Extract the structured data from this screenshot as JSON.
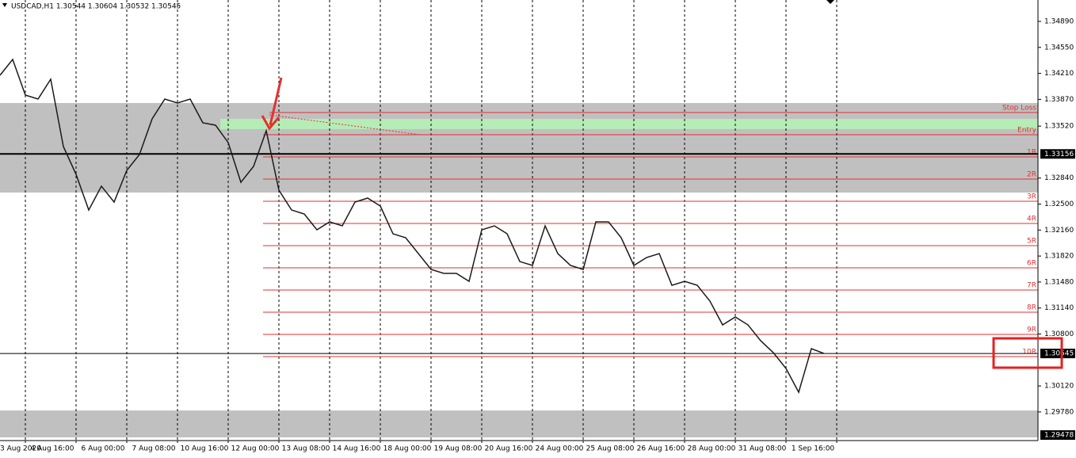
{
  "chart_data": {
    "type": "line",
    "title": "USDCAD,H1  1.30544 1.30604 1.30532 1.30545",
    "categories": [
      "3 Aug 2020",
      null,
      null,
      null,
      "4 Aug 16:00",
      null,
      null,
      null,
      "6 Aug 00:00",
      null,
      null,
      null,
      "7 Aug 08:00",
      null,
      null,
      null,
      "10 Aug 16:00",
      null,
      null,
      null,
      "12 Aug 00:00",
      null,
      null,
      null,
      "13 Aug 08:00",
      null,
      null,
      null,
      "14 Aug 16:00",
      null,
      null,
      null,
      "18 Aug 00:00",
      null,
      null,
      null,
      "19 Aug 08:00",
      null,
      null,
      null,
      "20 Aug 16:00",
      null,
      null,
      null,
      "24 Aug 00:00",
      null,
      null,
      null,
      "25 Aug 08:00",
      null,
      null,
      null,
      "26 Aug 16:00",
      null,
      null,
      null,
      "28 Aug 00:00",
      null,
      null,
      null,
      "31 Aug 08:00",
      null,
      null,
      null,
      "1 Sep 16:00",
      null
    ],
    "series": [
      {
        "name": "USDCAD",
        "color": "#1a1a1a",
        "values": [
          1.34185,
          1.34392,
          1.33926,
          1.33874,
          1.34133,
          1.33252,
          1.32889,
          1.32422,
          1.32734,
          1.32526,
          1.32941,
          1.33148,
          1.33615,
          1.33874,
          1.33822,
          1.33874,
          1.33563,
          1.33532,
          1.33304,
          1.32785,
          1.32993,
          1.33459,
          1.32682,
          1.32422,
          1.3237,
          1.32163,
          1.32267,
          1.32215,
          1.32526,
          1.32578,
          1.32474,
          1.32111,
          1.32059,
          1.31852,
          1.31645,
          1.31593,
          1.31593,
          1.31489,
          1.32163,
          1.32215,
          1.32111,
          1.31748,
          1.31697,
          1.32215,
          1.31852,
          1.31697,
          1.31645,
          1.32267,
          1.32267,
          1.32059,
          1.31697,
          1.318,
          1.31852,
          1.31437,
          1.31489,
          1.31437,
          1.3123,
          1.30919,
          1.31023,
          1.30919,
          1.30712,
          1.30556,
          1.30349,
          1.30038,
          1.30608,
          1.30545
        ]
      }
    ],
    "ylim": [
      1.29364,
      1.3517
    ],
    "yticks": [
      {
        "value": 1.3489,
        "label": "1.34890"
      },
      {
        "value": 1.3455,
        "label": "1.34550"
      },
      {
        "value": 1.3421,
        "label": "1.34210"
      },
      {
        "value": 1.3387,
        "label": "1.33870"
      },
      {
        "value": 1.3352,
        "label": "1.33520"
      },
      {
        "value": 1.3284,
        "label": "1.32840"
      },
      {
        "value": 1.325,
        "label": "1.32500"
      },
      {
        "value": 1.3216,
        "label": "1.32160"
      },
      {
        "value": 1.3182,
        "label": "1.31820"
      },
      {
        "value": 1.3148,
        "label": "1.31480"
      },
      {
        "value": 1.3114,
        "label": "1.31140"
      },
      {
        "value": 1.308,
        "label": "1.30800"
      },
      {
        "value": 1.3012,
        "label": "1.30120"
      },
      {
        "value": 1.2978,
        "label": "1.29780"
      }
    ],
    "zones": [
      {
        "from": 1.33822,
        "to": 1.32651,
        "color": "#c0c0c0"
      },
      {
        "from": 1.29799,
        "to": 1.29447,
        "color": "#c0c0c0"
      },
      {
        "from": 1.33615,
        "to": 1.3348,
        "color": "#b6ecb6"
      }
    ],
    "levels": [
      {
        "name": "Stop Loss",
        "value": 1.33698
      },
      {
        "name": "Entry",
        "value": 1.33407
      },
      {
        "name": "1R",
        "value": 1.33117
      },
      {
        "name": "2R",
        "value": 1.32827
      },
      {
        "name": "3R",
        "value": 1.32537
      },
      {
        "name": "4R",
        "value": 1.32246
      },
      {
        "name": "5R",
        "value": 1.31956
      },
      {
        "name": "6R",
        "value": 1.31666
      },
      {
        "name": "7R",
        "value": 1.31375
      },
      {
        "name": "8R",
        "value": 1.31085
      },
      {
        "name": "9R",
        "value": 1.30795
      },
      {
        "name": "10R",
        "value": 1.30504
      }
    ],
    "level_color": "#e03030",
    "price_lines": [
      {
        "value": 1.33156,
        "label": "1.33156"
      },
      {
        "value": 1.30545,
        "label": "1.30545"
      },
      {
        "value": 1.29478,
        "label": "1.29478"
      }
    ]
  }
}
